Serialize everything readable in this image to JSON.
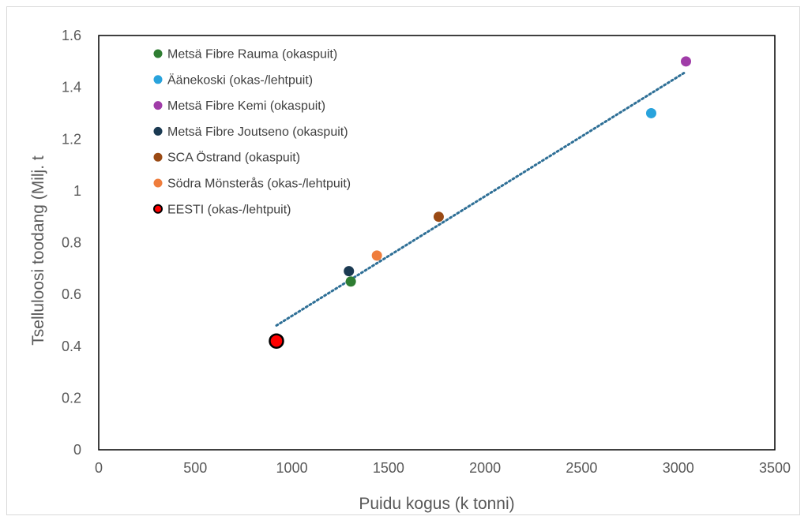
{
  "chart_data": {
    "type": "scatter",
    "title": "",
    "xlabel": "Puidu kogus (k tonni)",
    "ylabel": "Tselluloosi toodang (Milj. t",
    "xlim": [
      0,
      3500
    ],
    "ylim": [
      0,
      1.6
    ],
    "xticks": [
      "0",
      "500",
      "1000",
      "1500",
      "2000",
      "2500",
      "3000",
      "3500"
    ],
    "yticks": [
      "0",
      "0.2",
      "0.4",
      "0.6",
      "0.8",
      "1",
      "1.2",
      "1.4",
      "1.6"
    ],
    "grid": false,
    "legend_position": "top-left",
    "series": [
      {
        "name": "Metsä Fibre Rauma (okaspuit)",
        "color": "#2e7d32",
        "x": [
          1305
        ],
        "y": [
          0.65
        ]
      },
      {
        "name": "Äänekoski (okas-/lehtpuit)",
        "color": "#29a3dc",
        "x": [
          2860
        ],
        "y": [
          1.3
        ]
      },
      {
        "name": "Metsä Fibre Kemi (okaspuit)",
        "color": "#a03ca8",
        "x": [
          3040
        ],
        "y": [
          1.5
        ]
      },
      {
        "name": "Metsä Fibre Joutseno (okaspuit)",
        "color": "#1b3a52",
        "x": [
          1295
        ],
        "y": [
          0.69
        ]
      },
      {
        "name": "SCA Östrand (okaspuit)",
        "color": "#9a4a14",
        "x": [
          1760
        ],
        "y": [
          0.9
        ]
      },
      {
        "name": "Södra Mönsterås (okas-/lehtpuit)",
        "color": "#ef7d3c",
        "x": [
          1440
        ],
        "y": [
          0.75
        ]
      },
      {
        "name": "EESTI (okas-/lehtpuit)",
        "color": "#ff0000",
        "x": [
          920
        ],
        "y": [
          0.42
        ],
        "highlight": true
      }
    ],
    "trendline": {
      "type": "linear",
      "color": "#2e6f96",
      "x": [
        920,
        3040
      ],
      "y": [
        0.48,
        1.46
      ]
    }
  }
}
